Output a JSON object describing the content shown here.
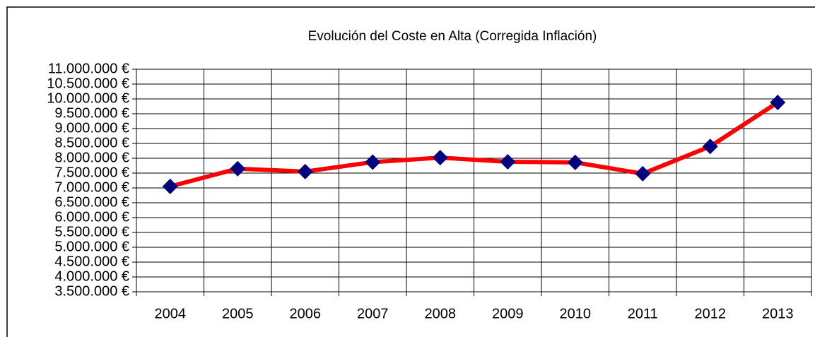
{
  "chart_data": {
    "type": "line",
    "title": "Evolución del Coste en Alta (Corregida Inflación)",
    "categories": [
      "2004",
      "2005",
      "2006",
      "2007",
      "2008",
      "2009",
      "2010",
      "2011",
      "2012",
      "2013"
    ],
    "series": [
      {
        "name": "Coste en Alta",
        "color": "#ff0000",
        "marker_color": "#000080",
        "values": [
          7050000,
          7650000,
          7550000,
          7870000,
          8020000,
          7880000,
          7860000,
          7480000,
          8400000,
          9880000
        ]
      }
    ],
    "ylim": [
      3500000,
      11000000
    ],
    "yticks": [
      {
        "value": 3500000,
        "label": "3.500.000 €"
      },
      {
        "value": 4000000,
        "label": "4.000.000 €"
      },
      {
        "value": 4500000,
        "label": "4.500.000 €"
      },
      {
        "value": 5000000,
        "label": "5.000.000 €"
      },
      {
        "value": 5500000,
        "label": "5.500.000 €"
      },
      {
        "value": 6000000,
        "label": "6.000.000 €"
      },
      {
        "value": 6500000,
        "label": "6.500.000 €"
      },
      {
        "value": 7000000,
        "label": "7.000.000 €"
      },
      {
        "value": 7500000,
        "label": "7.500.000 €"
      },
      {
        "value": 8000000,
        "label": "8.000.000 €"
      },
      {
        "value": 8500000,
        "label": "8.500.000 €"
      },
      {
        "value": 9000000,
        "label": "9.000.000 €"
      },
      {
        "value": 9500000,
        "label": "9.500.000 €"
      },
      {
        "value": 10000000,
        "label": "10.000.000 €"
      },
      {
        "value": 10500000,
        "label": "10.500.000 €"
      },
      {
        "value": 11000000,
        "label": "11.000.000 €"
      }
    ],
    "grid": true
  }
}
